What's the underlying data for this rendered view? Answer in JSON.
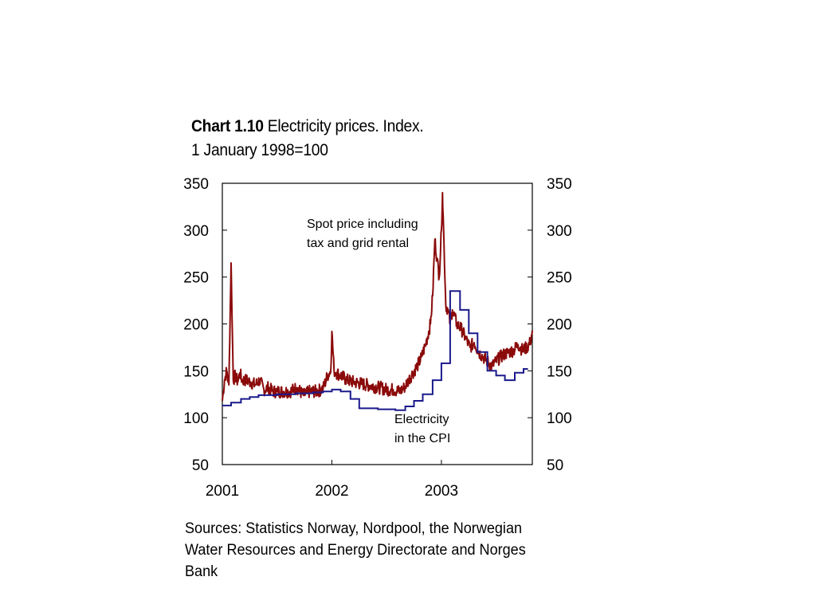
{
  "title": {
    "bold": "Chart 1.10",
    "rest": " Electricity prices. Index.",
    "line2": "1 January 1998=100"
  },
  "sources": "Sources: Statistics Norway, Nordpool, the Norwegian Water Resources and Energy Directorate and Norges Bank",
  "colors": {
    "spot": "#8b0a0a",
    "cpi": "#1a1a8c",
    "axis": "#000000"
  },
  "chart_data": {
    "type": "line",
    "title": "Chart 1.10 Electricity prices. Index. 1 January 1998=100",
    "xlabel": "",
    "ylabel": "",
    "xlim": [
      2001.0,
      2003.83
    ],
    "ylim": [
      50,
      350
    ],
    "x_ticks": [
      2001,
      2002,
      2003
    ],
    "x_tick_labels": [
      "2001",
      "2002",
      "2003"
    ],
    "y_ticks": [
      50,
      100,
      150,
      200,
      250,
      300,
      350
    ],
    "y_tick_labels": [
      "50",
      "100",
      "150",
      "200",
      "250",
      "300",
      "350"
    ],
    "grid": false,
    "annotations": [
      {
        "text": "Spot price including",
        "series": "spot"
      },
      {
        "text": "tax and grid rental",
        "series": "spot"
      },
      {
        "text": "Electricity",
        "series": "cpi"
      },
      {
        "text": "in the CPI",
        "series": "cpi"
      }
    ],
    "series": [
      {
        "name": "Spot price including tax and grid rental",
        "style": "noisy-line",
        "x": [
          2001.0,
          2001.02,
          2001.04,
          2001.06,
          2001.08,
          2001.1,
          2001.12,
          2001.14,
          2001.16,
          2001.18,
          2001.22,
          2001.26,
          2001.3,
          2001.34,
          2001.38,
          2001.42,
          2001.46,
          2001.5,
          2001.56,
          2001.62,
          2001.68,
          2001.74,
          2001.8,
          2001.86,
          2001.92,
          2001.96,
          2001.99,
          2002.0,
          2002.02,
          2002.04,
          2002.08,
          2002.14,
          2002.2,
          2002.28,
          2002.36,
          2002.44,
          2002.5,
          2002.56,
          2002.62,
          2002.66,
          2002.7,
          2002.74,
          2002.78,
          2002.82,
          2002.86,
          2002.9,
          2002.92,
          2002.94,
          2002.96,
          2002.98,
          2003.0,
          2003.01,
          2003.02,
          2003.04,
          2003.06,
          2003.08,
          2003.1,
          2003.14,
          2003.18,
          2003.22,
          2003.26,
          2003.3,
          2003.34,
          2003.38,
          2003.42,
          2003.46,
          2003.5,
          2003.54,
          2003.58,
          2003.62,
          2003.66,
          2003.7,
          2003.74,
          2003.78,
          2003.81,
          2003.83
        ],
        "y": [
          118,
          140,
          150,
          135,
          265,
          140,
          145,
          138,
          148,
          140,
          140,
          138,
          135,
          140,
          130,
          132,
          128,
          128,
          128,
          128,
          132,
          124,
          128,
          128,
          131,
          145,
          150,
          192,
          150,
          148,
          145,
          140,
          138,
          136,
          134,
          132,
          130,
          130,
          128,
          132,
          140,
          148,
          155,
          165,
          180,
          200,
          230,
          290,
          270,
          250,
          300,
          340,
          300,
          220,
          215,
          200,
          215,
          200,
          195,
          185,
          175,
          180,
          170,
          165,
          160,
          155,
          160,
          165,
          168,
          170,
          172,
          178,
          172,
          175,
          180,
          193
        ]
      },
      {
        "name": "Electricity in the CPI",
        "style": "step",
        "x": [
          2001.0,
          2001.08,
          2001.17,
          2001.25,
          2001.33,
          2001.42,
          2001.5,
          2001.58,
          2001.67,
          2001.75,
          2001.83,
          2001.92,
          2002.0,
          2002.08,
          2002.17,
          2002.25,
          2002.42,
          2002.58,
          2002.67,
          2002.75,
          2002.83,
          2002.92,
          2003.0,
          2003.08,
          2003.17,
          2003.25,
          2003.33,
          2003.42,
          2003.5,
          2003.58,
          2003.67,
          2003.75
        ],
        "y": [
          113,
          116,
          120,
          122,
          124,
          124,
          125,
          125,
          126,
          126,
          127,
          128,
          130,
          128,
          120,
          110,
          109,
          108,
          112,
          118,
          125,
          140,
          158,
          235,
          215,
          190,
          170,
          150,
          145,
          140,
          148,
          152
        ]
      }
    ]
  }
}
